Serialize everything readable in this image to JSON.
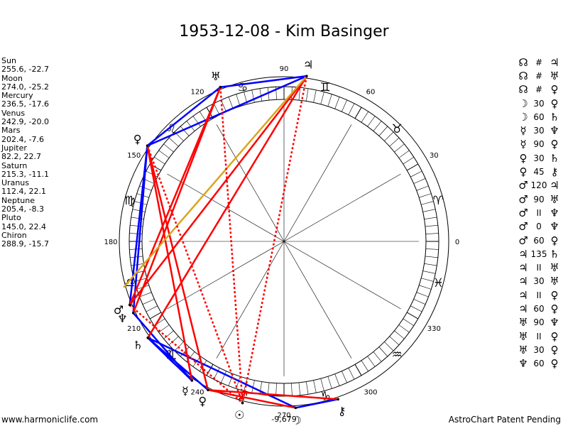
{
  "header": {
    "title": "1953-12-08 - Kim Basinger"
  },
  "planet_positions": [
    {
      "name": "Sun",
      "coords": "255.6, -22.7"
    },
    {
      "name": "Moon",
      "coords": "274.0, -25.2"
    },
    {
      "name": "Mercury",
      "coords": "236.5, -17.6"
    },
    {
      "name": "Venus",
      "coords": "242.9, -20.0"
    },
    {
      "name": "Mars",
      "coords": "202.4, -7.6"
    },
    {
      "name": "Jupiter",
      "coords": "82.2, 22.7"
    },
    {
      "name": "Saturn",
      "coords": "215.3, -11.1"
    },
    {
      "name": "Uranus",
      "coords": "112.4, 22.1"
    },
    {
      "name": "Neptune",
      "coords": "205.4, -8.3"
    },
    {
      "name": "Pluto",
      "coords": "145.0, 22.4"
    },
    {
      "name": "Chiron",
      "coords": "288.9, -15.7"
    }
  ],
  "aspect_table": [
    {
      "p1": "☊",
      "aspect": "#",
      "p2": "♃"
    },
    {
      "p1": "☊",
      "aspect": "#",
      "p2": "♅"
    },
    {
      "p1": "☊",
      "aspect": "#",
      "p2": "♀"
    },
    {
      "p1": "☽",
      "aspect": "30",
      "p2": "♀"
    },
    {
      "p1": "☽",
      "aspect": "60",
      "p2": "♄"
    },
    {
      "p1": "☿",
      "aspect": "30",
      "p2": "♆"
    },
    {
      "p1": "☿",
      "aspect": "90",
      "p2": "♀"
    },
    {
      "p1": "♀",
      "aspect": "30",
      "p2": "♄"
    },
    {
      "p1": "♀",
      "aspect": "45",
      "p2": "⚷"
    },
    {
      "p1": "♂",
      "aspect": "120",
      "p2": "♃"
    },
    {
      "p1": "♂",
      "aspect": "90",
      "p2": "♅"
    },
    {
      "p1": "♂",
      "aspect": "II",
      "p2": "♆"
    },
    {
      "p1": "♂",
      "aspect": "0",
      "p2": "♆"
    },
    {
      "p1": "♂",
      "aspect": "60",
      "p2": "♀"
    },
    {
      "p1": "♃",
      "aspect": "135",
      "p2": "♄"
    },
    {
      "p1": "♃",
      "aspect": "II",
      "p2": "♅"
    },
    {
      "p1": "♃",
      "aspect": "30",
      "p2": "♅"
    },
    {
      "p1": "♃",
      "aspect": "II",
      "p2": "♀"
    },
    {
      "p1": "♃",
      "aspect": "60",
      "p2": "♀"
    },
    {
      "p1": "♅",
      "aspect": "90",
      "p2": "♆"
    },
    {
      "p1": "♅",
      "aspect": "II",
      "p2": "♀"
    },
    {
      "p1": "♅",
      "aspect": "30",
      "p2": "♀"
    },
    {
      "p1": "♆",
      "aspect": "60",
      "p2": "♀"
    }
  ],
  "footer": {
    "left": "www.harmoniclife.com",
    "right": "AstroChart Patent Pending"
  },
  "chart_data": {
    "type": "scatter",
    "title": "1953-12-08 - Kim Basinger",
    "angle_ticks": [
      "0",
      "30",
      "60",
      "90",
      "120",
      "150",
      "180",
      "210",
      "240",
      "270",
      "300",
      "330"
    ],
    "bottom_label": "-9,679",
    "zodiac_signs": [
      "♈",
      "♉",
      "♊",
      "♋",
      "♌",
      "♍",
      "♎",
      "♏",
      "♐",
      "♑",
      "♒",
      "♓"
    ],
    "planets": [
      {
        "glyph": "☉",
        "longitude": 255.6
      },
      {
        "glyph": "☽",
        "longitude": 274.0
      },
      {
        "glyph": "☿",
        "longitude": 236.5
      },
      {
        "glyph": "♀",
        "longitude": 242.9
      },
      {
        "glyph": "♂",
        "longitude": 202.4
      },
      {
        "glyph": "♃",
        "longitude": 82.2
      },
      {
        "glyph": "♄",
        "longitude": 215.3
      },
      {
        "glyph": "♅",
        "longitude": 112.4
      },
      {
        "glyph": "♆",
        "longitude": 205.4
      },
      {
        "glyph": "♀",
        "longitude": 145.0
      },
      {
        "glyph": "⚷",
        "longitude": 288.9
      }
    ],
    "aspect_lines": [
      {
        "from": 112.4,
        "to": 145.0,
        "color": "#0000ff",
        "style": "solid"
      },
      {
        "from": 112.4,
        "to": 82.2,
        "color": "#0000ff",
        "style": "solid"
      },
      {
        "from": 145.0,
        "to": 82.2,
        "color": "#0000ff",
        "style": "solid"
      },
      {
        "from": 145.0,
        "to": 205.4,
        "color": "#0000ff",
        "style": "solid"
      },
      {
        "from": 145.0,
        "to": 202.4,
        "color": "#0000ff",
        "style": "solid"
      },
      {
        "from": 215.3,
        "to": 236.5,
        "color": "#0000ff",
        "style": "solid"
      },
      {
        "from": 215.3,
        "to": 242.9,
        "color": "#0000ff",
        "style": "solid"
      },
      {
        "from": 215.3,
        "to": 274.0,
        "color": "#0000ff",
        "style": "solid"
      },
      {
        "from": 236.5,
        "to": 205.4,
        "color": "#0000ff",
        "style": "solid"
      },
      {
        "from": 274.0,
        "to": 288.9,
        "color": "#0000ff",
        "style": "solid"
      },
      {
        "from": 242.9,
        "to": 288.9,
        "color": "#ff0000",
        "style": "solid"
      },
      {
        "from": 242.9,
        "to": 274.0,
        "color": "#ff0000",
        "style": "solid"
      },
      {
        "from": 202.4,
        "to": 82.2,
        "color": "#ff0000",
        "style": "solid"
      },
      {
        "from": 202.4,
        "to": 112.4,
        "color": "#ff0000",
        "style": "solid"
      },
      {
        "from": 205.4,
        "to": 112.4,
        "color": "#ff0000",
        "style": "solid"
      },
      {
        "from": 215.3,
        "to": 82.2,
        "color": "#ff0000",
        "style": "solid"
      },
      {
        "from": 145.0,
        "to": 242.9,
        "color": "#ff0000",
        "style": "solid"
      },
      {
        "from": 145.0,
        "to": 236.5,
        "color": "#ff0000",
        "style": "solid"
      },
      {
        "from": 196.0,
        "to": 82.2,
        "color": "#daa520",
        "style": "solid"
      },
      {
        "from": 112.4,
        "to": 255.6,
        "color": "#ff0000",
        "style": "dotted"
      },
      {
        "from": 82.2,
        "to": 255.6,
        "color": "#ff0000",
        "style": "dotted"
      },
      {
        "from": 145.0,
        "to": 255.6,
        "color": "#ff0000",
        "style": "dotted"
      },
      {
        "from": 202.4,
        "to": 255.6,
        "color": "#ff0000",
        "style": "dotted"
      }
    ],
    "colors": {
      "harmonious": "#0000ff",
      "challenging": "#ff0000",
      "other": "#daa520"
    }
  }
}
